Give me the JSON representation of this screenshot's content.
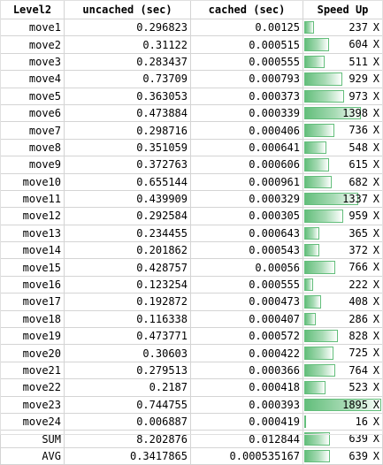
{
  "headers": {
    "name": "Level2",
    "uncached": "uncached (sec)",
    "cached": "cached (sec)",
    "speedup": "Speed Up"
  },
  "unit": "X",
  "bar_max": 1895,
  "rows": [
    {
      "name": "move1",
      "uncached": "0.296823",
      "cached": "0.00125",
      "speedup": 237
    },
    {
      "name": "move2",
      "uncached": "0.31122",
      "cached": "0.000515",
      "speedup": 604
    },
    {
      "name": "move3",
      "uncached": "0.283437",
      "cached": "0.000555",
      "speedup": 511
    },
    {
      "name": "move4",
      "uncached": "0.73709",
      "cached": "0.000793",
      "speedup": 929
    },
    {
      "name": "move5",
      "uncached": "0.363053",
      "cached": "0.000373",
      "speedup": 973
    },
    {
      "name": "move6",
      "uncached": "0.473884",
      "cached": "0.000339",
      "speedup": 1398
    },
    {
      "name": "move7",
      "uncached": "0.298716",
      "cached": "0.000406",
      "speedup": 736
    },
    {
      "name": "move8",
      "uncached": "0.351059",
      "cached": "0.000641",
      "speedup": 548
    },
    {
      "name": "move9",
      "uncached": "0.372763",
      "cached": "0.000606",
      "speedup": 615
    },
    {
      "name": "move10",
      "uncached": "0.655144",
      "cached": "0.000961",
      "speedup": 682
    },
    {
      "name": "move11",
      "uncached": "0.439909",
      "cached": "0.000329",
      "speedup": 1337
    },
    {
      "name": "move12",
      "uncached": "0.292584",
      "cached": "0.000305",
      "speedup": 959
    },
    {
      "name": "move13",
      "uncached": "0.234455",
      "cached": "0.000643",
      "speedup": 365
    },
    {
      "name": "move14",
      "uncached": "0.201862",
      "cached": "0.000543",
      "speedup": 372
    },
    {
      "name": "move15",
      "uncached": "0.428757",
      "cached": "0.00056",
      "speedup": 766
    },
    {
      "name": "move16",
      "uncached": "0.123254",
      "cached": "0.000555",
      "speedup": 222
    },
    {
      "name": "move17",
      "uncached": "0.192872",
      "cached": "0.000473",
      "speedup": 408
    },
    {
      "name": "move18",
      "uncached": "0.116338",
      "cached": "0.000407",
      "speedup": 286
    },
    {
      "name": "move19",
      "uncached": "0.473771",
      "cached": "0.000572",
      "speedup": 828
    },
    {
      "name": "move20",
      "uncached": "0.30603",
      "cached": "0.000422",
      "speedup": 725
    },
    {
      "name": "move21",
      "uncached": "0.279513",
      "cached": "0.000366",
      "speedup": 764
    },
    {
      "name": "move22",
      "uncached": "0.2187",
      "cached": "0.000418",
      "speedup": 523
    },
    {
      "name": "move23",
      "uncached": "0.744755",
      "cached": "0.000393",
      "speedup": 1895
    },
    {
      "name": "move24",
      "uncached": "0.006887",
      "cached": "0.000419",
      "speedup": 16
    },
    {
      "name": "SUM",
      "uncached": "8.202876",
      "cached": "0.012844",
      "speedup": 639
    },
    {
      "name": "AVG",
      "uncached": "0.3417865",
      "cached": "0.000535167",
      "speedup": 639
    }
  ]
}
